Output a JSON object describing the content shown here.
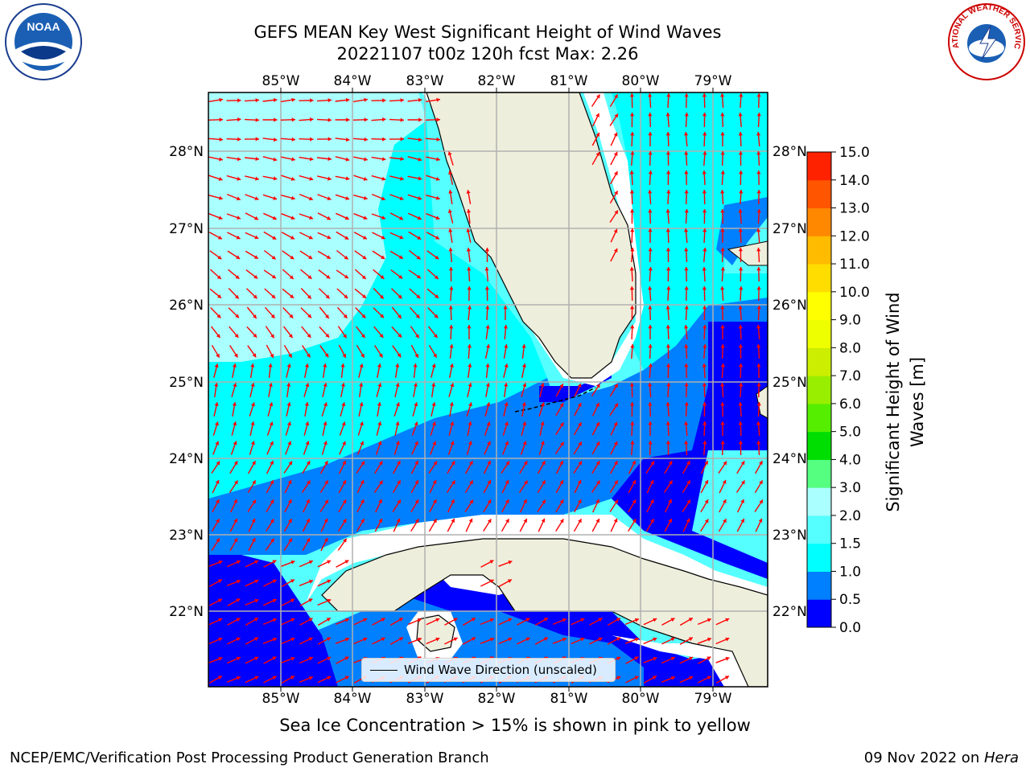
{
  "header": {
    "title_line1": "GEFS MEAN Key West Significant Height of Wind Waves",
    "title_line2": "20221107 t00z 120h fcst   Max: 2.26"
  },
  "map": {
    "lon_labels": [
      "85°W",
      "84°W",
      "83°W",
      "82°W",
      "81°W",
      "80°W",
      "79°W"
    ],
    "lat_labels": [
      "28°N",
      "27°N",
      "26°N",
      "25°N",
      "24°N",
      "23°N",
      "22°N"
    ],
    "legend_label": "Wind Wave Direction (unscaled)",
    "colors": {
      "land": "#eeeedc",
      "no_data": "#ffffff",
      "arrow": "#ff0000",
      "grid": "#b0b0b0"
    }
  },
  "colorbar": {
    "label": "Significant Height of Wind Waves [m]",
    "ticks": [
      "0.0",
      "0.5",
      "1.0",
      "1.5",
      "2.0",
      "3.0",
      "4.0",
      "5.0",
      "6.0",
      "7.0",
      "8.0",
      "9.0",
      "10.0",
      "11.0",
      "12.0",
      "13.0",
      "14.0",
      "15.0"
    ],
    "colors": [
      "#0000ff",
      "#0080ff",
      "#00ffff",
      "#55ffff",
      "#aaffff",
      "#55ff80",
      "#00dd00",
      "#55ee00",
      "#99ee00",
      "#ccee00",
      "#eeff00",
      "#ffff00",
      "#ffdd00",
      "#ffbb00",
      "#ff8800",
      "#ff5500",
      "#ff2200"
    ]
  },
  "footer": {
    "ice_note": "Sea Ice Concentration > 15% is shown in pink to yellow",
    "left": "NCEP/EMC/Verification Post Processing Product Generation Branch",
    "right_date": "09 Nov 2022 on ",
    "right_host": "Hera"
  },
  "logos": {
    "noaa_text": "NOAA",
    "nws_text": "NATIONAL WEATHER SERVICE"
  }
}
